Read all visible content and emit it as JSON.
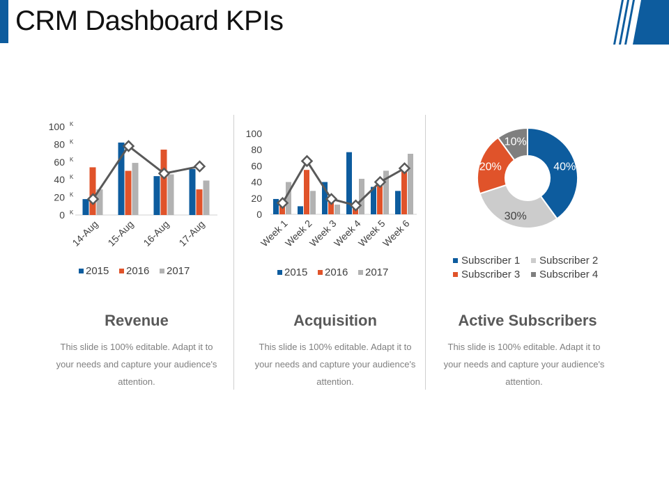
{
  "page": {
    "title": "CRM Dashboard KPIs"
  },
  "colors": {
    "blue": "#0d5c9e",
    "orange": "#e0532a",
    "gray": "#b2b2b2",
    "dark": "#595959",
    "line": "#595959"
  },
  "panels": [
    {
      "title": "Revenue",
      "desc": "This slide is 100% editable. Adapt it to your needs and capture your audience's attention."
    },
    {
      "title": "Acquisition",
      "desc": "This slide is 100% editable. Adapt it to your needs and capture your audience's attention."
    },
    {
      "title": "Active Subscribers",
      "desc": "This slide is 100% editable. Adapt it to your needs and capture your audience's attention."
    }
  ],
  "chart_data": [
    {
      "type": "bar",
      "name": "revenue",
      "categories": [
        "14-Aug",
        "15-Aug",
        "16-Aug",
        "17-Aug"
      ],
      "ylim": [
        0,
        100
      ],
      "yticks": [
        "0",
        "20",
        "40",
        "60",
        "80",
        "100"
      ],
      "ytick_suffix": "K",
      "series": [
        {
          "name": "2015",
          "values": [
            18,
            82,
            44,
            52
          ]
        },
        {
          "name": "2016",
          "values": [
            54,
            50,
            74,
            29
          ]
        },
        {
          "name": "2017",
          "values": [
            29,
            59,
            46,
            39
          ]
        }
      ],
      "line": {
        "values": [
          18,
          78,
          47,
          55
        ]
      }
    },
    {
      "type": "bar",
      "name": "acquisition",
      "categories": [
        "Week 1",
        "Week 2",
        "Week 3",
        "Week 4",
        "Week 5",
        "Week 6"
      ],
      "ylim": [
        0,
        100
      ],
      "yticks": [
        "0",
        "20",
        "40",
        "60",
        "80",
        "100"
      ],
      "series": [
        {
          "name": "2015",
          "values": [
            19,
            10,
            40,
            77,
            34,
            29
          ]
        },
        {
          "name": "2016",
          "values": [
            15,
            55,
            18,
            12,
            35,
            55
          ]
        },
        {
          "name": "2017",
          "values": [
            40,
            29,
            12,
            44,
            54,
            75
          ]
        }
      ],
      "line": {
        "values": [
          14,
          66,
          19,
          11,
          40,
          57
        ]
      }
    },
    {
      "type": "pie",
      "name": "active-subscribers",
      "labels": [
        "Subscriber 1",
        "Subscriber 2",
        "Subscriber 3",
        "Subscriber 4"
      ],
      "values": [
        40,
        30,
        20,
        10
      ],
      "value_labels": [
        "40%",
        "30%",
        "20%",
        "10%"
      ]
    }
  ]
}
